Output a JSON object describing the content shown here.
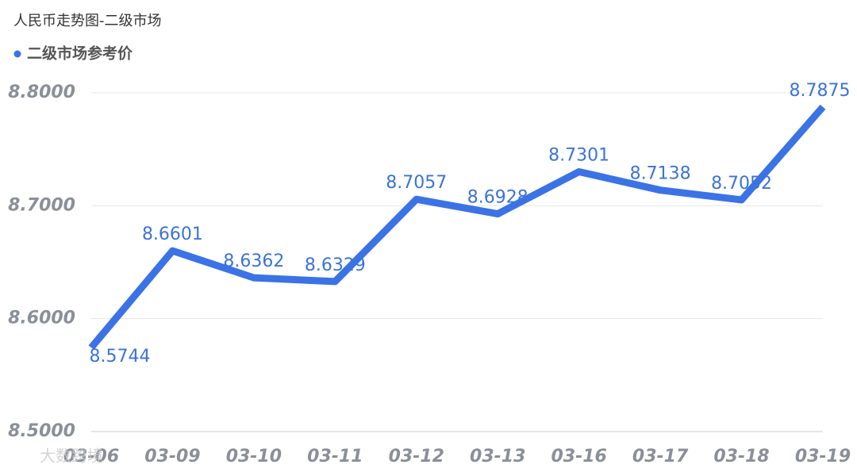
{
  "chart_data": {
    "type": "line",
    "title": "人民币走势图-二级市场",
    "categories": [
      "03-06",
      "03-09",
      "03-10",
      "03-11",
      "03-12",
      "03-13",
      "03-16",
      "03-17",
      "03-18",
      "03-19"
    ],
    "series": [
      {
        "name": "二级市场参考价",
        "color": "#3b73e6",
        "values": [
          8.5744,
          8.6601,
          8.6362,
          8.6329,
          8.7057,
          8.6928,
          8.7301,
          8.7138,
          8.7052,
          8.7875
        ],
        "value_labels": [
          "8.5744",
          "8.6601",
          "8.6362",
          "8.6329",
          "8.7057",
          "8.6928",
          "8.7301",
          "8.7138",
          "8.7052",
          "8.7875"
        ]
      }
    ],
    "ylim": [
      8.5,
      8.8
    ],
    "yticks": [
      {
        "value": 8.5,
        "label": "8.5000"
      },
      {
        "value": 8.6,
        "label": "8.6000"
      },
      {
        "value": 8.7,
        "label": "8.7000"
      },
      {
        "value": 8.8,
        "label": "8.8000"
      }
    ],
    "grid": true
  },
  "watermark": "大数跨境"
}
